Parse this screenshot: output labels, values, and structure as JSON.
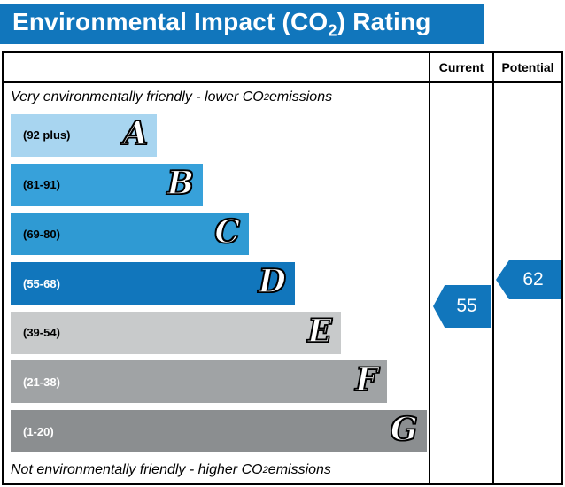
{
  "title": {
    "pre": "Environmental Impact (CO",
    "sub": "2",
    "post": ") Rating"
  },
  "columns": {
    "current": "Current",
    "potential": "Potential"
  },
  "notes": {
    "top": {
      "pre": "Very environmentally friendly - lower CO",
      "sub": "2",
      "post": " emissions"
    },
    "bottom": {
      "pre": "Not environmentally friendly - higher CO",
      "sub": "2",
      "post": " emissions"
    }
  },
  "colors": {
    "title_bar": "#1176bc",
    "border": "#000000"
  },
  "chart_data": {
    "type": "bar",
    "title": "Environmental Impact (CO2) Rating",
    "bands": [
      {
        "letter": "A",
        "range": "(92 plus)",
        "color": "#a8d5f0",
        "label_color": "#000000",
        "width_pct": 35
      },
      {
        "letter": "B",
        "range": "(81-91)",
        "color": "#37a1da",
        "label_color": "#000000",
        "width_pct": 46
      },
      {
        "letter": "C",
        "range": "(69-80)",
        "color": "#2f9ad3",
        "label_color": "#000000",
        "width_pct": 57
      },
      {
        "letter": "D",
        "range": "(55-68)",
        "color": "#1176bc",
        "label_color": "#ffffff",
        "width_pct": 68
      },
      {
        "letter": "E",
        "range": "(39-54)",
        "color": "#c8cacb",
        "label_color": "#000000",
        "width_pct": 79
      },
      {
        "letter": "F",
        "range": "(21-38)",
        "color": "#a0a3a5",
        "label_color": "#ffffff",
        "width_pct": 90
      },
      {
        "letter": "G",
        "range": "(1-20)",
        "color": "#8b8e90",
        "label_color": "#ffffff",
        "width_pct": 99.5
      }
    ],
    "current": {
      "value": 55,
      "color": "#1176bc"
    },
    "potential": {
      "value": 62,
      "color": "#1176bc"
    }
  }
}
